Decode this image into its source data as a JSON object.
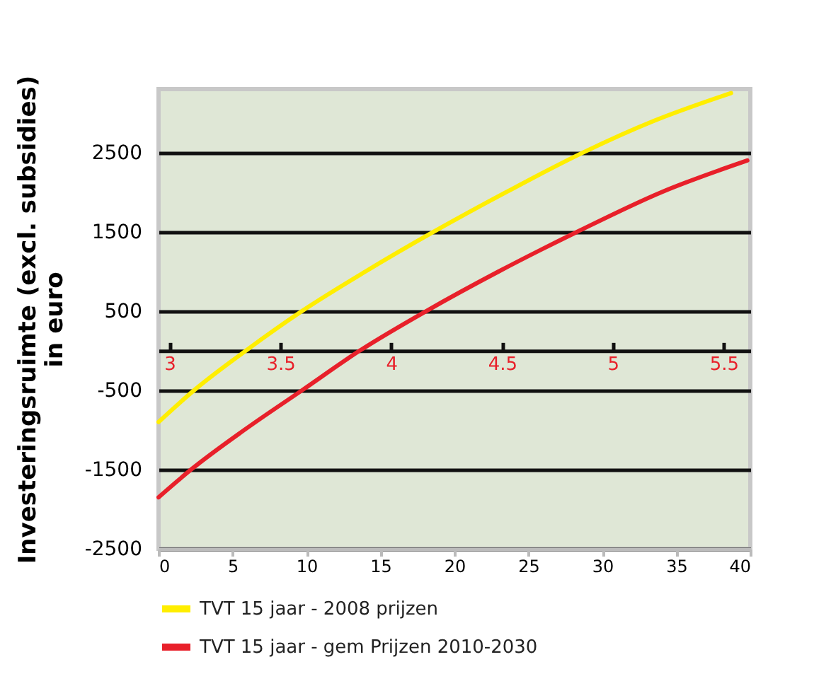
{
  "chart_data": {
    "type": "line",
    "ylabel": "Investeringsruimte (excl. subsidies)\nin euro",
    "xlim": [
      0,
      40
    ],
    "xticks": [
      0,
      5,
      10,
      15,
      20,
      25,
      30,
      35,
      40
    ],
    "ylim": [
      -2500,
      3300
    ],
    "yticks": [
      -2500,
      -1500,
      -500,
      500,
      1500,
      2500
    ],
    "x2lim": [
      2.95,
      5.62
    ],
    "x2ticks": [
      3,
      3.5,
      4,
      4.5,
      5,
      5.5
    ],
    "grid": "y",
    "legend": "bottom",
    "line_style": "solid",
    "marker": "none",
    "series": [
      {
        "name": "TVT 15 jaar - 2008 prijzen",
        "color": "#ffee00",
        "x": [
          0,
          2.4,
          5.9,
          9.7,
          14,
          18.6,
          23.5,
          28.7,
          33.5,
          38.7
        ],
        "values": [
          -900,
          -500,
          0,
          500,
          1000,
          1500,
          2000,
          2500,
          2900,
          3250
        ]
      },
      {
        "name": "TVT 15 jaar - gem Prijzen 2010-2030",
        "color": "#e8202a",
        "x": [
          0,
          2.2,
          5.8,
          9.7,
          13.6,
          18.1,
          23,
          28.3,
          34,
          39.8
        ],
        "values": [
          -1850,
          -1500,
          -1000,
          -500,
          0,
          500,
          1000,
          1500,
          2000,
          2400
        ]
      }
    ]
  }
}
